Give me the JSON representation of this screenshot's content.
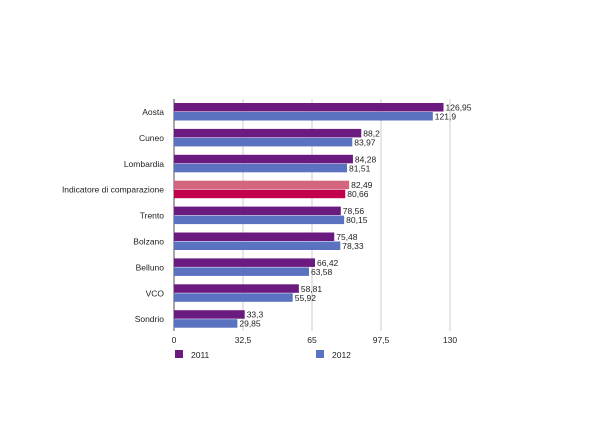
{
  "chart_data": {
    "type": "bar",
    "orientation": "horizontal",
    "categories": [
      "Aosta",
      "Cuneo",
      "Lombardia",
      "Indicatore di comparazione",
      "Trento",
      "Bolzano",
      "Belluno",
      "VCO",
      "Sondrio"
    ],
    "highlighted_category": "Indicatore di comparazione",
    "series": [
      {
        "name": "2011",
        "values": [
          126.95,
          88.2,
          84.28,
          82.49,
          78.56,
          75.48,
          66.42,
          58.81,
          33.3
        ],
        "labels": [
          "126,95",
          "88,2",
          "84,28",
          "82,49",
          "78,56",
          "75,48",
          "66,42",
          "58,81",
          "33,3"
        ],
        "color": "#6b1a80",
        "highlight_color": "#d3667d"
      },
      {
        "name": "2012",
        "values": [
          121.9,
          83.97,
          81.51,
          80.66,
          80.15,
          78.33,
          63.58,
          55.92,
          29.85
        ],
        "labels": [
          "121,9",
          "83,97",
          "81,51",
          "80,66",
          "80,15",
          "78,33",
          "63,58",
          "55,92",
          "29,85"
        ],
        "color": "#5a72c0",
        "highlight_color": "#c2004b"
      }
    ],
    "xlim": [
      0,
      130
    ],
    "xticks": [
      0,
      32.5,
      65,
      97.5,
      130
    ],
    "xtick_labels": [
      "0",
      "32,5",
      "65",
      "97,5",
      "130"
    ],
    "grid": true,
    "legend": "bottom"
  }
}
